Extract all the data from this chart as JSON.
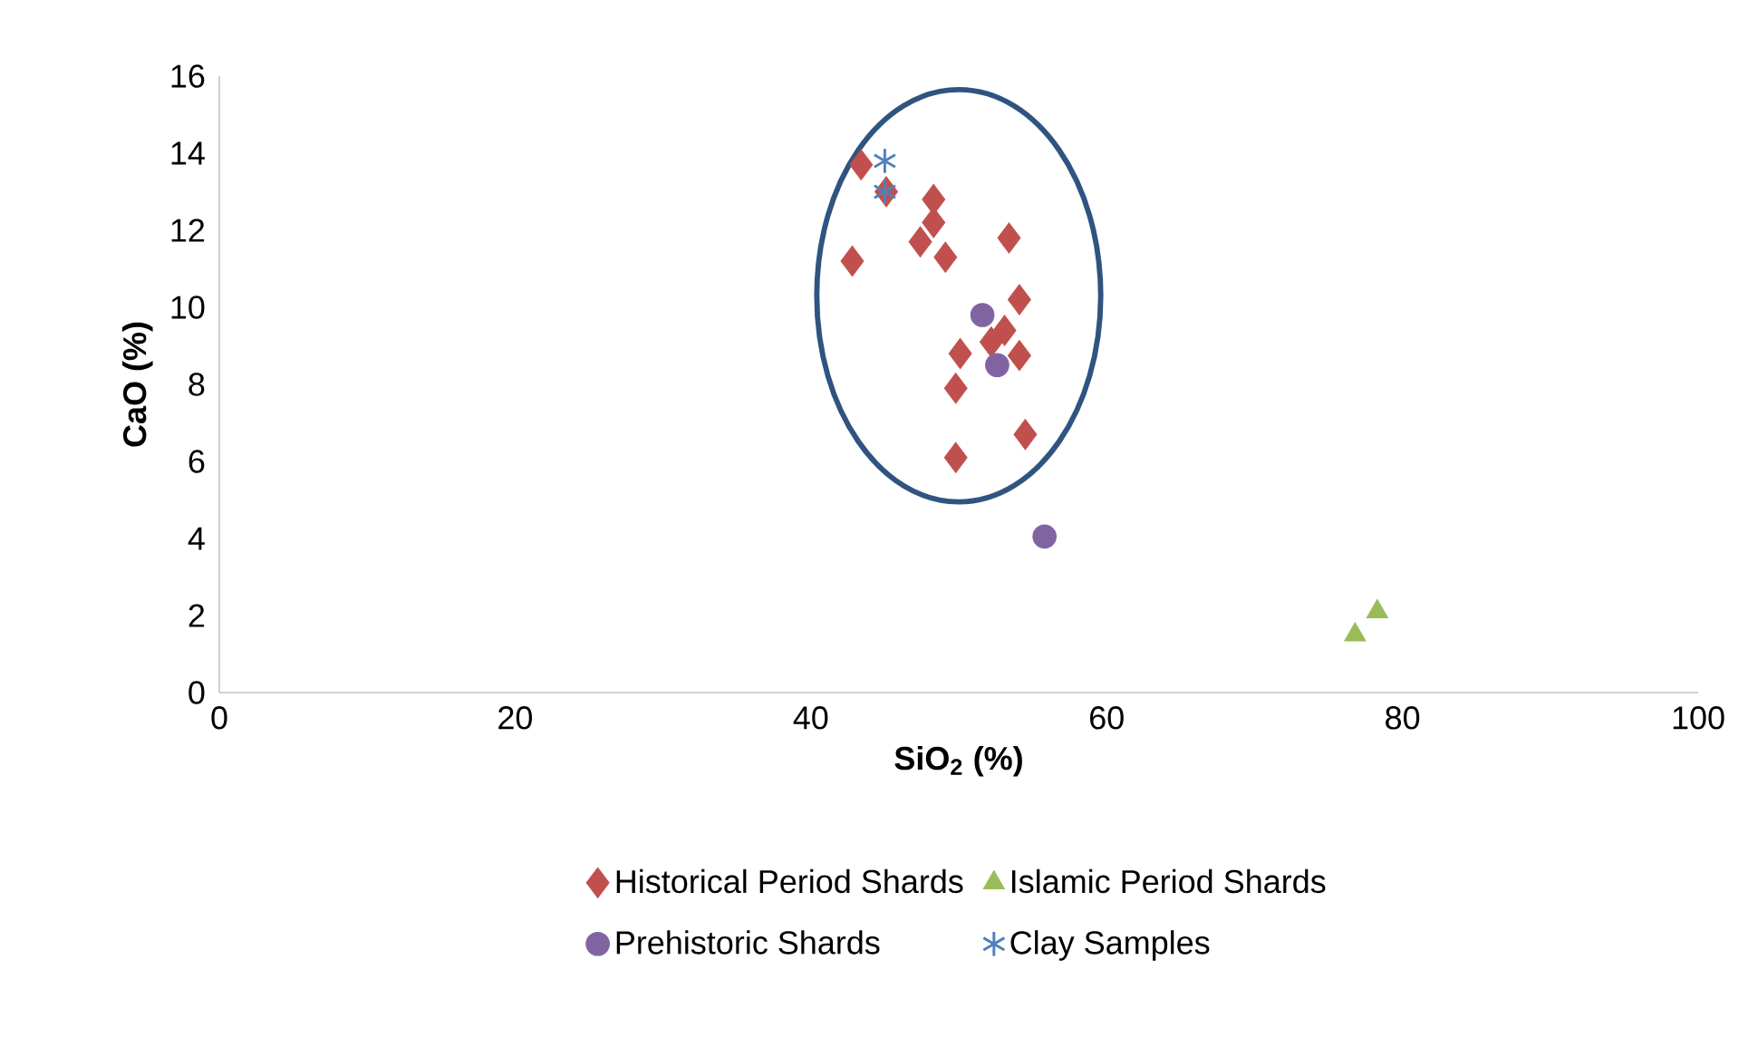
{
  "chart_data": {
    "type": "scatter",
    "xlabel": "SiO$_{2}$ (%)",
    "ylabel": "CaO (%)",
    "xlim": [
      0,
      100
    ],
    "xticks": [
      0,
      20,
      40,
      60,
      80,
      100
    ],
    "ylim": [
      0,
      16
    ],
    "yticks": [
      0,
      2,
      4,
      6,
      8,
      10,
      12,
      14,
      16
    ],
    "legend": "bottom",
    "grid": false,
    "series": [
      {
        "name": "Historical Period Shards",
        "color": "#c0504d",
        "marker": "diamond",
        "x": [
          43.4,
          45.1,
          42.8,
          48.3,
          48.3,
          47.4,
          49.1,
          53.4,
          54.1,
          50.1,
          49.8,
          49.8,
          54.5,
          54.1,
          53.1,
          52.2
        ],
        "values": [
          13.7,
          13.0,
          11.2,
          12.8,
          12.2,
          11.7,
          11.3,
          11.8,
          10.2,
          8.8,
          7.9,
          6.1,
          6.7,
          8.75,
          9.4,
          9.1
        ]
      },
      {
        "name": "Islamic Period Shards",
        "color": "#9bbb59",
        "marker": "triangle",
        "x": [
          78.3,
          76.8
        ],
        "values": [
          2.1,
          1.5
        ]
      },
      {
        "name": "Prehistoric Shards",
        "color": "#8064a2",
        "marker": "circle",
        "x": [
          51.6,
          52.6,
          55.8
        ],
        "values": [
          9.8,
          8.5,
          4.05
        ]
      },
      {
        "name": "Clay Samples",
        "color": "#4f81bd",
        "marker": "cross",
        "x": [
          45.0,
          45.0
        ],
        "values": [
          13.8,
          13.0
        ]
      }
    ]
  }
}
